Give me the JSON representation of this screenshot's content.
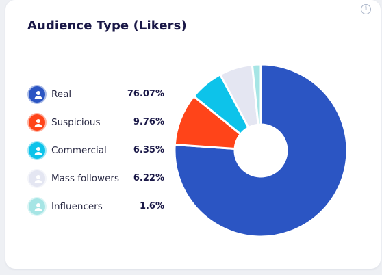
{
  "card": {
    "title": "Audience Type (Likers)",
    "info_icon": "info-icon"
  },
  "chart_data": {
    "type": "pie",
    "style": "donut",
    "categories": [
      "Real",
      "Suspicious",
      "Commercial",
      "Mass followers",
      "Influencers"
    ],
    "values": [
      76.07,
      9.76,
      6.35,
      6.22,
      1.6
    ],
    "value_labels": [
      "76.07%",
      "9.76%",
      "6.35%",
      "6.22%",
      "1.6%"
    ],
    "colors": [
      "#2b55c3",
      "#ff4419",
      "#0dc3ea",
      "#e4e6f2",
      "#a6e5e5"
    ],
    "icon_colors": [
      "#2b55c3",
      "#ff4419",
      "#0dc3ea",
      "#e4e6f2",
      "#a6e5e5"
    ],
    "legend_placement": "left",
    "title": "Audience Type (Likers)"
  }
}
